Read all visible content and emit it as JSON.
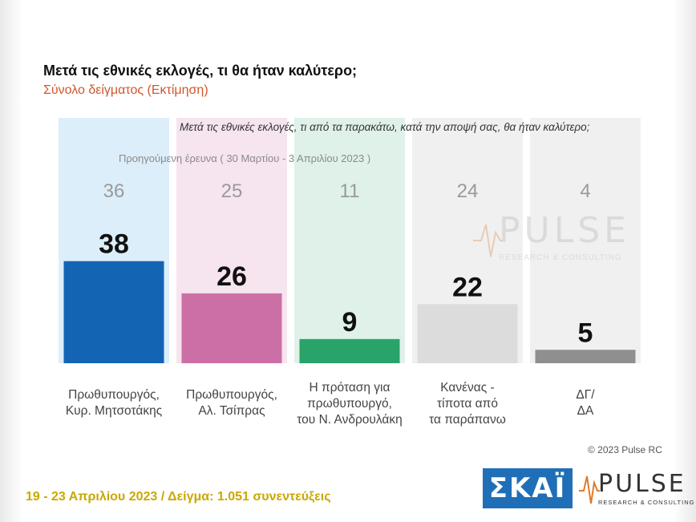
{
  "title": "Μετά τις εθνικές εκλογές, τι θα ήταν καλύτερο;",
  "subtitle": "Σύνολο δείγματος (Εκτίμηση)",
  "question": "Μετά τις εθνικές εκλογές, τι από τα παρακάτω, κατά την αποψή σας, θα ήταν καλύτερο;",
  "previous_survey_label": "Προηγούμενη έρευνα ( 30 Μαρτίου - 3 Απριλίου 2023 )",
  "footer": {
    "date_sample": "19 - 23 Απριλίου 2023 / Δείγμα: 1.051 συνεντεύξεις",
    "copyright": "© 2023 Pulse RC"
  },
  "logos": {
    "skai": "ΣΚΑΪ",
    "pulse": "PULSE",
    "pulse_sub": "RESEARCH & CONSULTING"
  },
  "chart_data": {
    "type": "bar",
    "title": "Μετά τις εθνικές εκλογές, τι θα ήταν καλύτερο;",
    "subtitle": "Σύνολο δείγματος (Εκτίμηση)",
    "categories": [
      [
        "Πρωθυπουργός,",
        "Κυρ. Μητσοτάκης"
      ],
      [
        "Πρωθυπουργός,",
        "Αλ. Τσίπρας"
      ],
      [
        "Η πρόταση για",
        "πρωθυπουργό,",
        "του Ν. Ανδρουλάκη"
      ],
      [
        "Κανένας -",
        "τίποτα από",
        "τα παράπανω"
      ],
      [
        "ΔΓ/",
        "ΔΑ"
      ]
    ],
    "series": [
      {
        "name": "",
        "values": [
          38,
          26,
          9,
          22,
          5
        ]
      },
      {
        "name": "Προηγούμενη έρευνα ( 30 Μαρτίου - 3 Απριλίου 2023 )",
        "values": [
          36,
          25,
          11,
          24,
          4
        ]
      }
    ],
    "colors": [
      "#1464b4",
      "#cc6fa6",
      "#2aa36b",
      "#dcdcdc",
      "#8f8f8f"
    ],
    "column_bg_colors": [
      "#dceef9",
      "#f6e4ef",
      "#dff1e8",
      "#f0f0f0",
      "#f0f0f0"
    ],
    "ylim": [
      0,
      100
    ]
  }
}
